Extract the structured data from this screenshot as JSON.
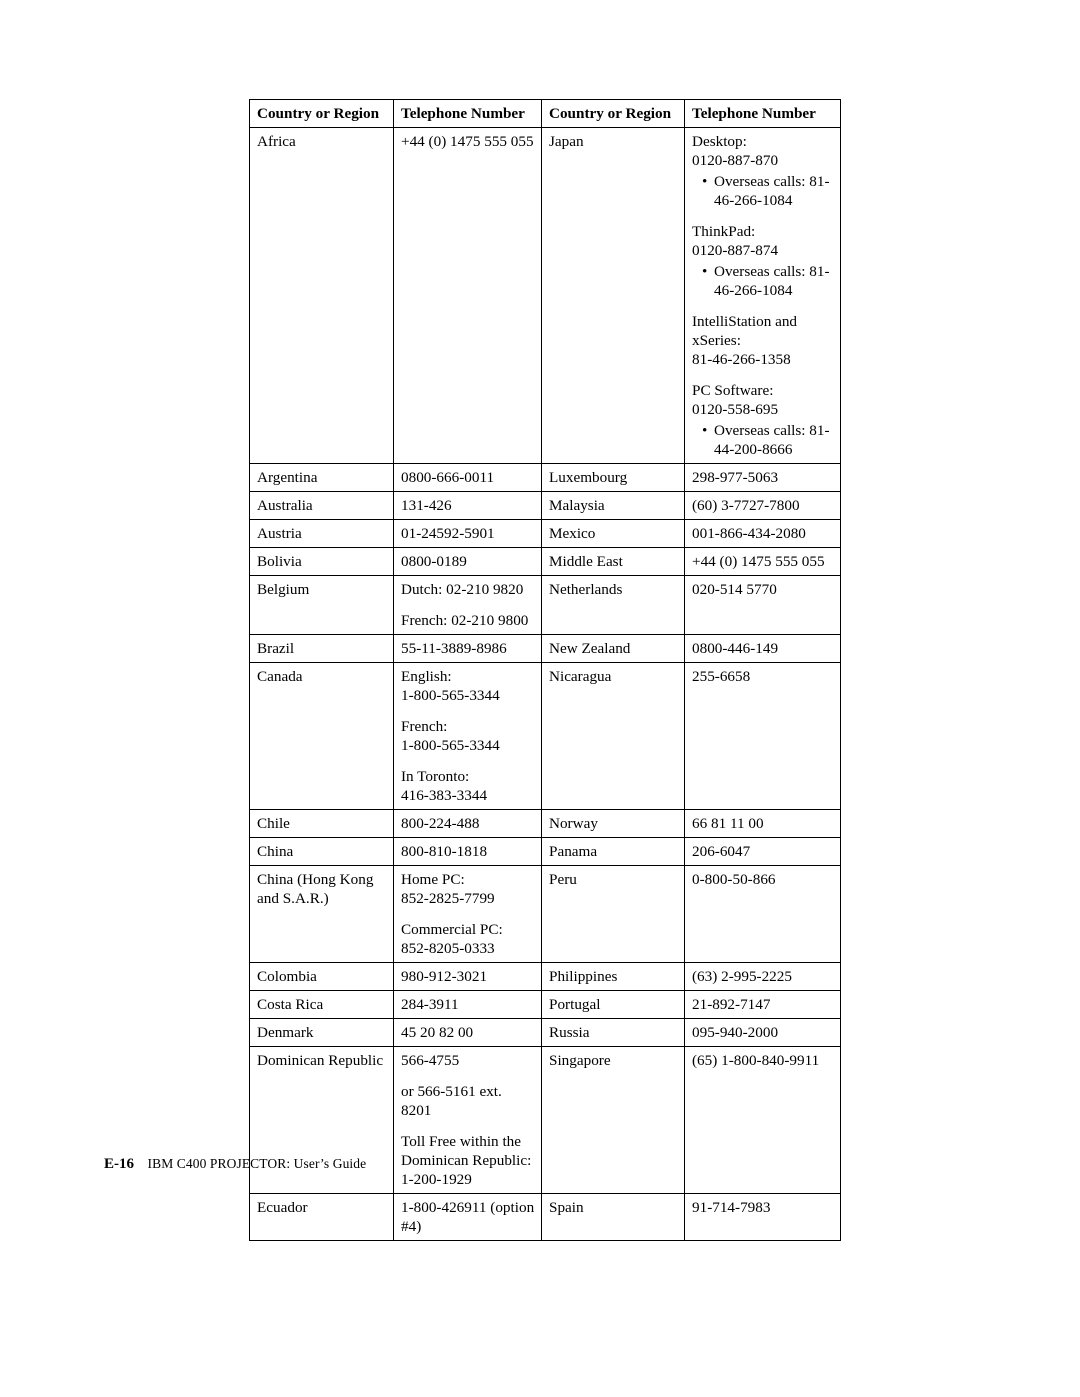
{
  "table": {
    "headers": [
      "Country or Region",
      "Telephone Number",
      "Country or Region",
      "Telephone Number"
    ],
    "rows": [
      {
        "c1": {
          "lines": [
            "Africa"
          ]
        },
        "c2": {
          "lines": [
            "+44 (0) 1475 555 055"
          ]
        },
        "c3": {
          "lines": [
            "Japan"
          ]
        },
        "c4": {
          "blocks": [
            {
              "lines": [
                "Desktop:",
                "0120-887-870"
              ],
              "bullets": [
                "Overseas calls: 81-46-266-1084"
              ]
            },
            {
              "lines": [
                "ThinkPad:",
                "0120-887-874"
              ],
              "bullets": [
                "Overseas calls: 81-46-266-1084"
              ]
            },
            {
              "lines": [
                "IntelliStation and xSeries:",
                "81-46-266-1358"
              ]
            },
            {
              "lines": [
                "PC Software:",
                "0120-558-695"
              ],
              "bullets": [
                "Overseas calls: 81-44-200-8666"
              ]
            }
          ]
        }
      },
      {
        "c1": {
          "lines": [
            "Argentina"
          ]
        },
        "c2": {
          "lines": [
            "0800-666-0011"
          ]
        },
        "c3": {
          "lines": [
            "Luxembourg"
          ]
        },
        "c4": {
          "lines": [
            "298-977-5063"
          ]
        }
      },
      {
        "c1": {
          "lines": [
            "Australia"
          ]
        },
        "c2": {
          "lines": [
            "131-426"
          ]
        },
        "c3": {
          "lines": [
            "Malaysia"
          ]
        },
        "c4": {
          "lines": [
            "(60) 3-7727-7800"
          ]
        }
      },
      {
        "c1": {
          "lines": [
            "Austria"
          ]
        },
        "c2": {
          "lines": [
            "01-24592-5901"
          ]
        },
        "c3": {
          "lines": [
            "Mexico"
          ]
        },
        "c4": {
          "lines": [
            "001-866-434-2080"
          ]
        }
      },
      {
        "c1": {
          "lines": [
            "Bolivia"
          ]
        },
        "c2": {
          "lines": [
            "0800-0189"
          ]
        },
        "c3": {
          "lines": [
            "Middle East"
          ]
        },
        "c4": {
          "lines": [
            "+44 (0) 1475 555 055"
          ]
        }
      },
      {
        "c1": {
          "lines": [
            "Belgium"
          ]
        },
        "c2": {
          "blocks": [
            {
              "lines": [
                "Dutch: 02-210 9820"
              ]
            },
            {
              "lines": [
                "French: 02-210 9800"
              ]
            }
          ]
        },
        "c3": {
          "lines": [
            "Netherlands"
          ]
        },
        "c4": {
          "lines": [
            "020-514 5770"
          ]
        }
      },
      {
        "c1": {
          "lines": [
            "Brazil"
          ]
        },
        "c2": {
          "lines": [
            "55-11-3889-8986"
          ]
        },
        "c3": {
          "lines": [
            "New Zealand"
          ]
        },
        "c4": {
          "lines": [
            "0800-446-149"
          ]
        }
      },
      {
        "c1": {
          "lines": [
            "Canada"
          ]
        },
        "c2": {
          "blocks": [
            {
              "lines": [
                "English:",
                "1-800-565-3344"
              ]
            },
            {
              "lines": [
                "French:",
                "1-800-565-3344"
              ]
            },
            {
              "lines": [
                "In Toronto:",
                "416-383-3344"
              ]
            }
          ]
        },
        "c3": {
          "lines": [
            "Nicaragua"
          ]
        },
        "c4": {
          "lines": [
            "255-6658"
          ]
        }
      },
      {
        "c1": {
          "lines": [
            "Chile"
          ]
        },
        "c2": {
          "lines": [
            "800-224-488"
          ]
        },
        "c3": {
          "lines": [
            "Norway"
          ]
        },
        "c4": {
          "lines": [
            "66 81 11 00"
          ]
        }
      },
      {
        "c1": {
          "lines": [
            "China"
          ]
        },
        "c2": {
          "lines": [
            "800-810-1818"
          ]
        },
        "c3": {
          "lines": [
            "Panama"
          ]
        },
        "c4": {
          "lines": [
            "206-6047"
          ]
        }
      },
      {
        "c1": {
          "lines": [
            "China (Hong Kong and S.A.R.)"
          ]
        },
        "c2": {
          "blocks": [
            {
              "lines": [
                "Home PC:",
                "852-2825-7799"
              ]
            },
            {
              "lines": [
                "Commercial PC:",
                "852-8205-0333"
              ]
            }
          ]
        },
        "c3": {
          "lines": [
            "Peru"
          ]
        },
        "c4": {
          "lines": [
            "0-800-50-866"
          ]
        }
      },
      {
        "c1": {
          "lines": [
            "Colombia"
          ]
        },
        "c2": {
          "lines": [
            "980-912-3021"
          ]
        },
        "c3": {
          "lines": [
            "Philippines"
          ]
        },
        "c4": {
          "lines": [
            "(63) 2-995-2225"
          ]
        }
      },
      {
        "c1": {
          "lines": [
            "Costa Rica"
          ]
        },
        "c2": {
          "lines": [
            "284-3911"
          ]
        },
        "c3": {
          "lines": [
            "Portugal"
          ]
        },
        "c4": {
          "lines": [
            "21-892-7147"
          ]
        }
      },
      {
        "c1": {
          "lines": [
            "Denmark"
          ]
        },
        "c2": {
          "lines": [
            "45 20 82 00"
          ]
        },
        "c3": {
          "lines": [
            "Russia"
          ]
        },
        "c4": {
          "lines": [
            "095-940-2000"
          ]
        }
      },
      {
        "c1": {
          "lines": [
            "Dominican Republic"
          ]
        },
        "c2": {
          "blocks": [
            {
              "lines": [
                "566-4755"
              ]
            },
            {
              "lines": [
                "or 566-5161 ext. 8201"
              ]
            },
            {
              "lines": [
                "Toll Free within the Dominican Republic:",
                "1-200-1929"
              ]
            }
          ]
        },
        "c3": {
          "lines": [
            "Singapore"
          ]
        },
        "c4": {
          "lines": [
            "(65) 1-800-840-9911"
          ]
        }
      },
      {
        "c1": {
          "lines": [
            "Ecuador"
          ]
        },
        "c2": {
          "lines": [
            "1-800-426911 (option #4)"
          ]
        },
        "c3": {
          "lines": [
            "Spain"
          ]
        },
        "c4": {
          "lines": [
            "91-714-7983"
          ]
        }
      }
    ]
  },
  "footer": {
    "page_number": "E-16",
    "title": "IBM C400 PROJECTOR: User’s Guide"
  }
}
